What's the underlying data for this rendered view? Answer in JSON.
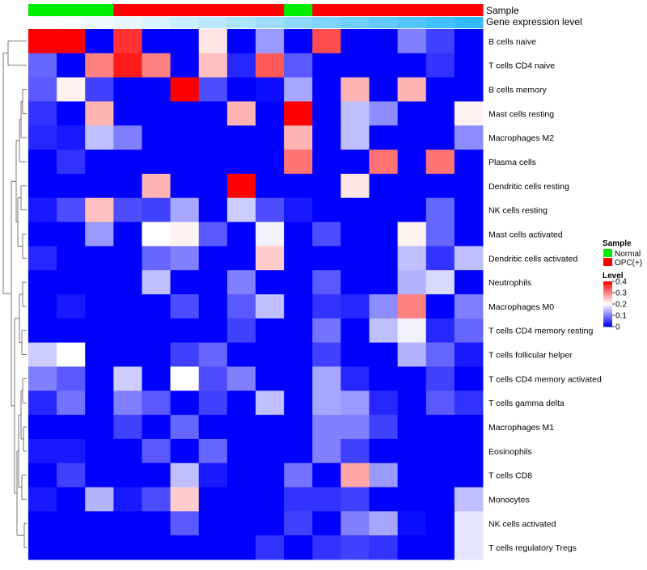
{
  "chart_data": {
    "type": "heatmap",
    "annotation_labels": [
      "Sample",
      "Gene expression level"
    ],
    "samples": [
      "Normal",
      "Normal",
      "Normal",
      "OPC(+)",
      "OPC(+)",
      "OPC(+)",
      "OPC(+)",
      "OPC(+)",
      "OPC(+)",
      "Normal",
      "OPC(+)",
      "OPC(+)",
      "OPC(+)",
      "OPC(+)",
      "OPC(+)",
      "OPC(+)"
    ],
    "expression_annotation": [
      0.0,
      0.01,
      0.02,
      0.03,
      0.05,
      0.07,
      0.09,
      0.11,
      0.13,
      0.15,
      0.17,
      0.19,
      0.21,
      0.23,
      0.25,
      0.27
    ],
    "rows": [
      "B cells naive",
      "T cells CD4 naive",
      "B cells memory",
      "Mast cells resting",
      "Macrophages M2",
      "Plasma cells",
      "Dendritic cells resting",
      "NK cells resting",
      "Mast cells activated",
      "Dendritic cells activated",
      "Neutrophils",
      "Macrophages M0",
      "T cells CD4 memory resting",
      "T cells follicular helper",
      "T cells CD4 memory activated",
      "T cells gamma delta",
      "Macrophages M1",
      "Eosinophils",
      "T cells CD8",
      "Monocytes",
      "NK cells activated",
      "T cells regulatory  Tregs"
    ],
    "values": [
      [
        0.4,
        0.4,
        0.0,
        0.36,
        0.0,
        0.0,
        0.22,
        0.0,
        0.12,
        0.0,
        0.34,
        0.0,
        0.0,
        0.1,
        0.05,
        0.0
      ],
      [
        0.08,
        0.0,
        0.3,
        0.38,
        0.3,
        0.0,
        0.25,
        0.03,
        0.33,
        0.07,
        0.0,
        0.0,
        0.0,
        0.0,
        0.04,
        0.0
      ],
      [
        0.07,
        0.21,
        0.05,
        0.0,
        0.0,
        0.4,
        0.06,
        0.0,
        0.01,
        0.13,
        0.0,
        0.26,
        0.0,
        0.26,
        0.0,
        0.0
      ],
      [
        0.04,
        0.0,
        0.26,
        0.0,
        0.0,
        0.0,
        0.0,
        0.26,
        0.0,
        0.4,
        0.0,
        0.15,
        0.11,
        0.0,
        0.0,
        0.21
      ],
      [
        0.03,
        0.02,
        0.15,
        0.1,
        0.0,
        0.0,
        0.0,
        0.0,
        0.0,
        0.26,
        0.0,
        0.15,
        0.0,
        0.0,
        0.0,
        0.11
      ],
      [
        0.0,
        0.04,
        0.0,
        0.0,
        0.0,
        0.0,
        0.0,
        0.0,
        0.0,
        0.31,
        0.0,
        0.0,
        0.31,
        0.0,
        0.31,
        0.0
      ],
      [
        0.0,
        0.0,
        0.0,
        0.0,
        0.26,
        0.0,
        0.0,
        0.4,
        0.0,
        0.0,
        0.0,
        0.22,
        0.0,
        0.0,
        0.0,
        0.0
      ],
      [
        0.02,
        0.06,
        0.25,
        0.06,
        0.05,
        0.13,
        0.0,
        0.16,
        0.06,
        0.02,
        0.0,
        0.0,
        0.0,
        0.0,
        0.08,
        0.0
      ],
      [
        0.0,
        0.0,
        0.12,
        0.0,
        0.2,
        0.21,
        0.07,
        0.0,
        0.19,
        0.0,
        0.06,
        0.0,
        0.0,
        0.21,
        0.08,
        0.0
      ],
      [
        0.03,
        0.0,
        0.0,
        0.0,
        0.08,
        0.1,
        0.0,
        0.0,
        0.24,
        0.0,
        0.0,
        0.0,
        0.0,
        0.15,
        0.04,
        0.15
      ],
      [
        0.0,
        0.0,
        0.0,
        0.0,
        0.15,
        0.0,
        0.0,
        0.1,
        0.0,
        0.0,
        0.07,
        0.0,
        0.0,
        0.14,
        0.17,
        0.0
      ],
      [
        0.0,
        0.02,
        0.0,
        0.0,
        0.0,
        0.06,
        0.0,
        0.07,
        0.15,
        0.0,
        0.04,
        0.03,
        0.11,
        0.3,
        0.0,
        0.1
      ],
      [
        0.0,
        0.0,
        0.0,
        0.0,
        0.0,
        0.0,
        0.0,
        0.05,
        0.0,
        0.0,
        0.09,
        0.0,
        0.15,
        0.19,
        0.03,
        0.08
      ],
      [
        0.16,
        0.2,
        0.0,
        0.0,
        0.0,
        0.05,
        0.08,
        0.0,
        0.0,
        0.0,
        0.05,
        0.0,
        0.0,
        0.14,
        0.08,
        0.02
      ],
      [
        0.1,
        0.07,
        0.0,
        0.16,
        0.0,
        0.2,
        0.06,
        0.1,
        0.0,
        0.0,
        0.13,
        0.03,
        0.0,
        0.0,
        0.05,
        0.0
      ],
      [
        0.03,
        0.09,
        0.0,
        0.1,
        0.07,
        0.0,
        0.05,
        0.0,
        0.15,
        0.0,
        0.13,
        0.12,
        0.03,
        0.0,
        0.07,
        0.04
      ],
      [
        0.0,
        0.0,
        0.0,
        0.05,
        0.0,
        0.08,
        0.0,
        0.0,
        0.0,
        0.0,
        0.1,
        0.1,
        0.05,
        0.0,
        0.0,
        0.0
      ],
      [
        0.02,
        0.02,
        0.0,
        0.0,
        0.07,
        0.0,
        0.08,
        0.0,
        0.0,
        0.0,
        0.1,
        0.05,
        0.0,
        0.0,
        0.0,
        0.0
      ],
      [
        0.0,
        0.05,
        0.0,
        0.0,
        0.0,
        0.15,
        0.02,
        0.0,
        0.0,
        0.09,
        0.0,
        0.27,
        0.12,
        0.0,
        0.0,
        0.0
      ],
      [
        0.02,
        0.0,
        0.14,
        0.02,
        0.06,
        0.24,
        0.0,
        0.0,
        0.0,
        0.04,
        0.04,
        0.05,
        0.0,
        0.0,
        0.0,
        0.15
      ],
      [
        0.0,
        0.0,
        0.0,
        0.0,
        0.0,
        0.07,
        0.0,
        0.0,
        0.0,
        0.05,
        0.0,
        0.1,
        0.13,
        0.01,
        0.0,
        0.18
      ],
      [
        0.0,
        0.0,
        0.0,
        0.0,
        0.0,
        0.0,
        0.0,
        0.0,
        0.04,
        0.0,
        0.04,
        0.05,
        0.04,
        0.0,
        0.0,
        0.18
      ]
    ],
    "color_scale": {
      "low": "#0000ff",
      "mid": "#ffffff",
      "high": "#ff0000",
      "min": 0,
      "max": 0.4,
      "midpoint": 0.2
    },
    "sample_colors": {
      "Normal": "#00ee00",
      "OPC(+)": "#ff0000"
    },
    "expression_colors": {
      "low": "#ffffff",
      "high": "#33bbff"
    },
    "legend_placement": "right",
    "legend": {
      "sample_title": "Sample",
      "sample_entries": [
        "Normal",
        "OPC(+)"
      ],
      "level_title": "Level",
      "level_ticks": [
        "0.4",
        "0.3",
        "0.2",
        "0.1",
        "0"
      ]
    },
    "row_dendrogram": "left"
  }
}
